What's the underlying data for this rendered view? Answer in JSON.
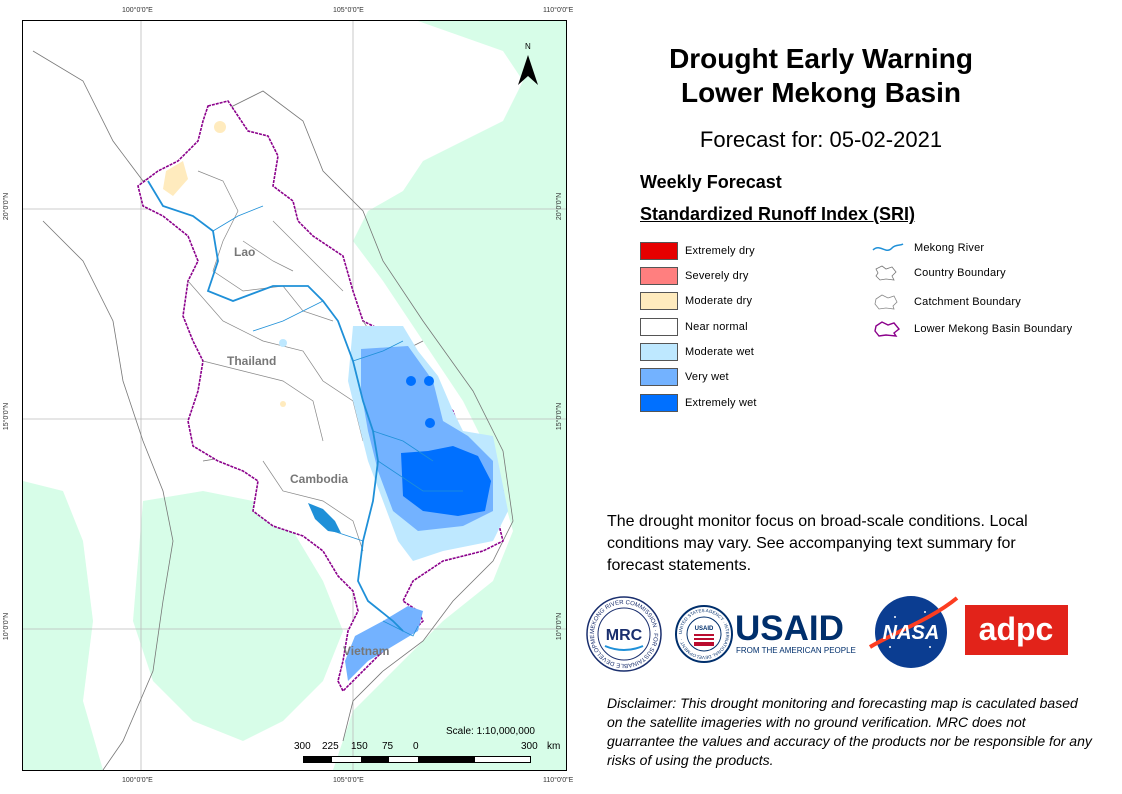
{
  "title": "Drought Early Warning\nLower Mekong Basin",
  "title_line1": "Drought Early Warning",
  "title_line2": "Lower Mekong Basin",
  "forecast": "Forecast for: 05-02-2021",
  "weekly": "Weekly Forecast",
  "index_name": "Standardized Runoff Index (SRI)",
  "legend_classes": [
    {
      "label": "Extremely dry",
      "color": "#e60000"
    },
    {
      "label": "Severely dry",
      "color": "#ff7f7f"
    },
    {
      "label": "Moderate dry",
      "color": "#ffebbe"
    },
    {
      "label": "Near normal",
      "color": "#ffffff"
    },
    {
      "label": "Moderate wet",
      "color": "#bee8ff"
    },
    {
      "label": "Very wet",
      "color": "#73b2ff"
    },
    {
      "label": "Extremely wet",
      "color": "#0070ff"
    }
  ],
  "legend_lines": [
    {
      "label": "Mekong River"
    },
    {
      "label": "Country Boundary"
    },
    {
      "label": "Catchment Boundary"
    },
    {
      "label": "Lower Mekong Basin Boundary"
    }
  ],
  "country_labels": {
    "lao": "Lao",
    "thailand": "Thailand",
    "cambodia": "Cambodia",
    "vietnam": "Vietnam"
  },
  "coords": {
    "top": [
      "100°0'0\"E",
      "105°0'0\"E",
      "110°0'0\"E"
    ],
    "bottom": [
      "100°0'0\"E",
      "105°0'0\"E",
      "110°0'0\"E"
    ],
    "left": [
      "20°0'0\"N",
      "15°0'0\"N",
      "10°0'0\"N"
    ],
    "right": [
      "20°0'0\"N",
      "15°0'0\"N",
      "10°0'0\"N"
    ]
  },
  "north_label": "N",
  "scale_text": "Scale: 1:10,000,000",
  "scale_numbers": [
    "300",
    "225",
    "150",
    "75",
    "0",
    "300",
    "km"
  ],
  "notice": "The drought monitor focus on broad-scale conditions. Local conditions may vary. See accompanying text summary for forecast statements.",
  "logos": {
    "mrc": "MRC",
    "mrc_ring": "MEKONG RIVER COMMISSION · FOR SUSTAINABLE DEVELOPMENT ·",
    "usaid_seal": "USAID",
    "usaid_seal_ring": "UNITED STATES AGENCY · INTERNATIONAL DEVELOPMENT ·",
    "usaid": "USAID",
    "usaid_sub": "FROM THE AMERICAN PEOPLE",
    "nasa": "NASA",
    "adpc": "adpc"
  },
  "disclaimer": "Disclaimer: This drought monitoring and forecasting map is caculated based on the satellite imageries with no ground verification. MRC does not guarrantee the values and accuracy of the products nor be responsible for any risks of using the products.",
  "colors": {
    "sea": "#d7fde8",
    "boundary": "#8b008b",
    "river": "#1f90d8"
  }
}
